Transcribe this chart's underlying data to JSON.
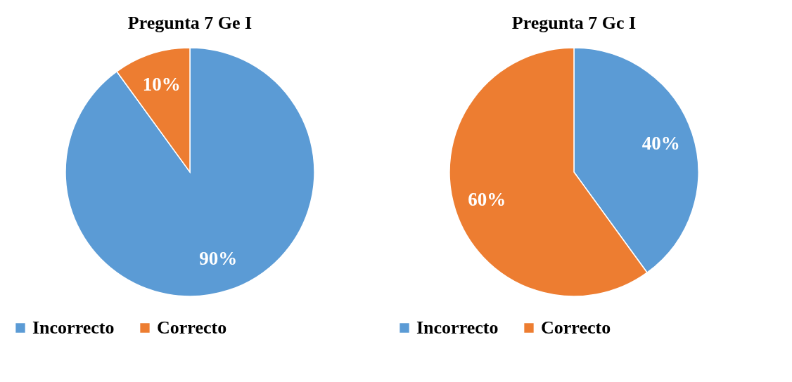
{
  "chart_data": [
    {
      "type": "pie",
      "title": "Pregunta 7 Ge I",
      "categories": [
        "Incorrecto",
        "Correcto"
      ],
      "values": [
        90,
        10
      ],
      "colors": [
        "#5b9bd5",
        "#ed7d31"
      ],
      "value_labels": [
        "90%",
        "10%"
      ],
      "legend": "bottom"
    },
    {
      "type": "pie",
      "title": "Pregunta 7 Gc I",
      "categories": [
        "Incorrecto",
        "Correcto"
      ],
      "values": [
        40,
        60
      ],
      "colors": [
        "#5b9bd5",
        "#ed7d31"
      ],
      "value_labels": [
        "40%",
        "60%"
      ],
      "legend": "bottom"
    }
  ]
}
